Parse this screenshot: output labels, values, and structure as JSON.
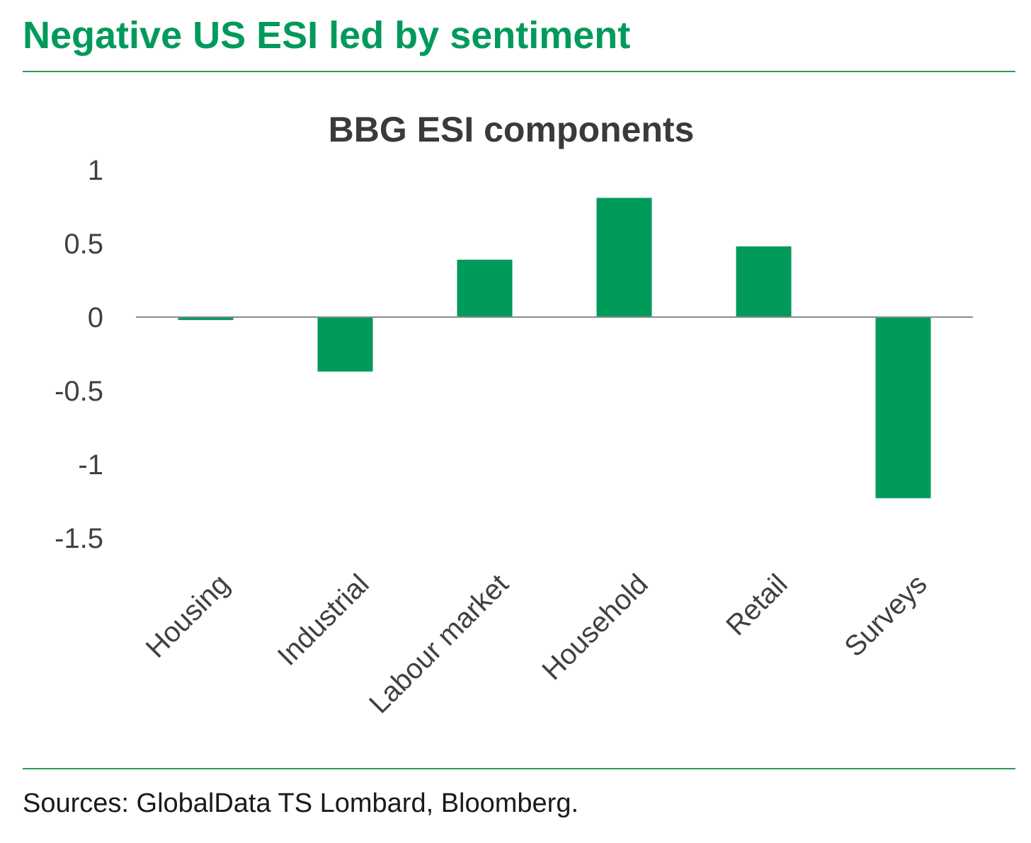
{
  "header": {
    "title": "Negative US ESI led by sentiment"
  },
  "footer": {
    "source": "Sources: GlobalData TS Lombard, Bloomberg."
  },
  "colors": {
    "accent": "#009a5b",
    "bar": "#009a5b",
    "axis": "#8c8c8c",
    "title_text": "#3a3a3a",
    "tick_text": "#404040"
  },
  "chart_data": {
    "type": "bar",
    "title": "BBG ESI components",
    "xlabel": "",
    "ylabel": "",
    "categories": [
      "Housing",
      "Industrial",
      "Labour market",
      "Household",
      "Retail",
      "Surveys"
    ],
    "values": [
      -0.02,
      -0.37,
      0.39,
      0.81,
      0.48,
      -1.23
    ],
    "ylim": [
      -1.5,
      1
    ],
    "yticks": [
      1,
      0.5,
      0,
      -0.5,
      -1,
      -1.5
    ],
    "ytick_labels": [
      "1",
      "0.5",
      "0",
      "-0.5",
      "-1",
      "-1.5"
    ],
    "grid": false,
    "legend": "none"
  }
}
